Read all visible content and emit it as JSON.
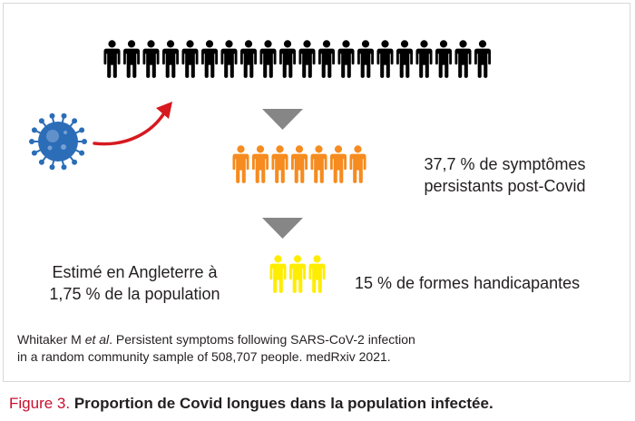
{
  "groups": [
    {
      "count": 20,
      "color": "#000000"
    },
    {
      "count": 7,
      "color": "#f68b1f"
    },
    {
      "count": 3,
      "color": "#ffed00"
    }
  ],
  "colors": {
    "arrow": "#d71920",
    "virus": "#2c6db8",
    "down_triangles": "#868686",
    "caption_label": "#c8102e"
  },
  "texts": {
    "persistent_line1": "37,7 % de symptômes",
    "persistent_line2": "persistants post-Covid",
    "disabling": "15 % de formes handicapantes",
    "estimate_line1": "Estimé en Angleterre à",
    "estimate_line2": "1,75 % de la population"
  },
  "citation": {
    "author": "Whitaker M ",
    "etal": "et al",
    "line1_rest": ". Persistent symptoms following SARS-CoV-2 infection",
    "line2": "in a random community sample of 508,707 people. medRxiv 2021."
  },
  "caption": {
    "label": "Figure 3.",
    "title": "Proportion de Covid longues dans la population infectée."
  }
}
